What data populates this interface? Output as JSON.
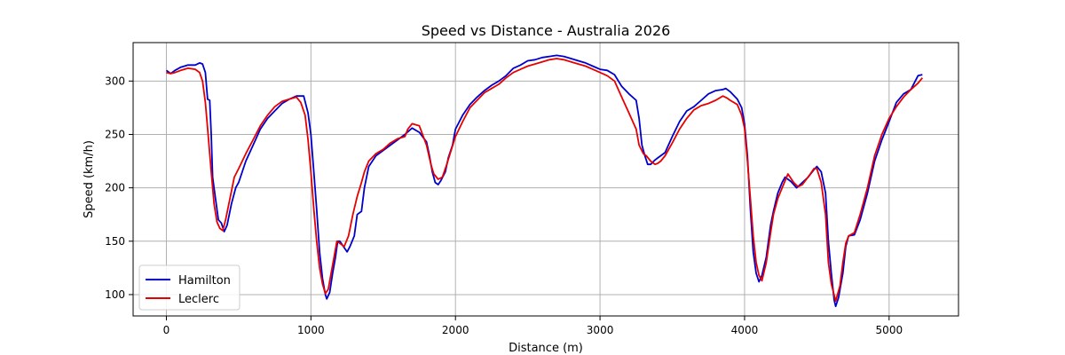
{
  "chart_data": {
    "type": "line",
    "title": "Speed vs Distance - Australia 2026",
    "xlabel": "Distance (m)",
    "ylabel": "Speed (km/h)",
    "xlim": [
      -230,
      5480
    ],
    "ylim": [
      80,
      336
    ],
    "x_ticks": [
      0,
      1000,
      2000,
      3000,
      4000,
      5000
    ],
    "x_tick_labels": [
      "0",
      "1000",
      "2000",
      "3000",
      "4000",
      "5000"
    ],
    "y_ticks": [
      100,
      150,
      200,
      250,
      300
    ],
    "y_tick_labels": [
      "100",
      "150",
      "200",
      "250",
      "300"
    ],
    "grid": true,
    "legend_position": "lower-left",
    "series": [
      {
        "name": "Hamilton",
        "color": "#0000cc",
        "points": [
          [
            0,
            310
          ],
          [
            30,
            307
          ],
          [
            60,
            310
          ],
          [
            100,
            313
          ],
          [
            150,
            315
          ],
          [
            200,
            315
          ],
          [
            230,
            317
          ],
          [
            250,
            316
          ],
          [
            270,
            308
          ],
          [
            285,
            283
          ],
          [
            300,
            282
          ],
          [
            310,
            250
          ],
          [
            320,
            210
          ],
          [
            340,
            190
          ],
          [
            360,
            170
          ],
          [
            380,
            167
          ],
          [
            400,
            159
          ],
          [
            420,
            165
          ],
          [
            450,
            185
          ],
          [
            480,
            200
          ],
          [
            500,
            205
          ],
          [
            550,
            225
          ],
          [
            600,
            240
          ],
          [
            650,
            255
          ],
          [
            700,
            265
          ],
          [
            750,
            272
          ],
          [
            800,
            279
          ],
          [
            850,
            283
          ],
          [
            900,
            286
          ],
          [
            950,
            286
          ],
          [
            980,
            270
          ],
          [
            1000,
            250
          ],
          [
            1020,
            215
          ],
          [
            1040,
            180
          ],
          [
            1060,
            140
          ],
          [
            1080,
            115
          ],
          [
            1100,
            100
          ],
          [
            1110,
            96
          ],
          [
            1130,
            102
          ],
          [
            1150,
            120
          ],
          [
            1170,
            135
          ],
          [
            1185,
            150
          ],
          [
            1200,
            150
          ],
          [
            1230,
            144
          ],
          [
            1250,
            140
          ],
          [
            1270,
            145
          ],
          [
            1300,
            155
          ],
          [
            1320,
            175
          ],
          [
            1350,
            178
          ],
          [
            1370,
            200
          ],
          [
            1400,
            220
          ],
          [
            1450,
            230
          ],
          [
            1500,
            235
          ],
          [
            1550,
            240
          ],
          [
            1600,
            245
          ],
          [
            1650,
            250
          ],
          [
            1700,
            256
          ],
          [
            1750,
            252
          ],
          [
            1800,
            243
          ],
          [
            1820,
            230
          ],
          [
            1840,
            215
          ],
          [
            1860,
            205
          ],
          [
            1880,
            203
          ],
          [
            1900,
            207
          ],
          [
            1930,
            215
          ],
          [
            1950,
            228
          ],
          [
            1980,
            240
          ],
          [
            2000,
            255
          ],
          [
            2050,
            268
          ],
          [
            2100,
            278
          ],
          [
            2150,
            285
          ],
          [
            2200,
            291
          ],
          [
            2250,
            296
          ],
          [
            2300,
            300
          ],
          [
            2350,
            305
          ],
          [
            2400,
            312
          ],
          [
            2450,
            315
          ],
          [
            2500,
            319
          ],
          [
            2550,
            320
          ],
          [
            2600,
            322
          ],
          [
            2650,
            323
          ],
          [
            2700,
            324
          ],
          [
            2750,
            323
          ],
          [
            2800,
            321
          ],
          [
            2850,
            319
          ],
          [
            2900,
            317
          ],
          [
            2950,
            314
          ],
          [
            3000,
            311
          ],
          [
            3050,
            310
          ],
          [
            3100,
            306
          ],
          [
            3150,
            295
          ],
          [
            3200,
            288
          ],
          [
            3250,
            282
          ],
          [
            3270,
            265
          ],
          [
            3290,
            240
          ],
          [
            3310,
            230
          ],
          [
            3330,
            222
          ],
          [
            3350,
            222
          ],
          [
            3380,
            226
          ],
          [
            3400,
            228
          ],
          [
            3450,
            233
          ],
          [
            3500,
            248
          ],
          [
            3550,
            262
          ],
          [
            3600,
            272
          ],
          [
            3650,
            276
          ],
          [
            3700,
            282
          ],
          [
            3750,
            288
          ],
          [
            3800,
            291
          ],
          [
            3850,
            292
          ],
          [
            3870,
            293
          ],
          [
            3900,
            290
          ],
          [
            3950,
            283
          ],
          [
            3980,
            275
          ],
          [
            4000,
            260
          ],
          [
            4020,
            230
          ],
          [
            4040,
            180
          ],
          [
            4060,
            140
          ],
          [
            4080,
            120
          ],
          [
            4100,
            112
          ],
          [
            4120,
            118
          ],
          [
            4150,
            135
          ],
          [
            4180,
            165
          ],
          [
            4200,
            178
          ],
          [
            4230,
            195
          ],
          [
            4260,
            205
          ],
          [
            4280,
            210
          ],
          [
            4320,
            206
          ],
          [
            4360,
            200
          ],
          [
            4400,
            205
          ],
          [
            4440,
            210
          ],
          [
            4480,
            217
          ],
          [
            4500,
            220
          ],
          [
            4530,
            215
          ],
          [
            4560,
            195
          ],
          [
            4580,
            150
          ],
          [
            4600,
            120
          ],
          [
            4620,
            95
          ],
          [
            4630,
            89
          ],
          [
            4650,
            97
          ],
          [
            4680,
            120
          ],
          [
            4700,
            145
          ],
          [
            4720,
            155
          ],
          [
            4760,
            156
          ],
          [
            4800,
            170
          ],
          [
            4850,
            195
          ],
          [
            4900,
            225
          ],
          [
            4950,
            245
          ],
          [
            5000,
            262
          ],
          [
            5050,
            280
          ],
          [
            5100,
            288
          ],
          [
            5150,
            292
          ],
          [
            5200,
            305
          ],
          [
            5230,
            306
          ]
        ]
      },
      {
        "name": "Leclerc",
        "color": "#e60000",
        "points": [
          [
            0,
            308
          ],
          [
            30,
            307
          ],
          [
            60,
            308
          ],
          [
            100,
            310
          ],
          [
            150,
            312
          ],
          [
            200,
            311
          ],
          [
            230,
            308
          ],
          [
            250,
            300
          ],
          [
            270,
            280
          ],
          [
            290,
            248
          ],
          [
            310,
            215
          ],
          [
            330,
            185
          ],
          [
            350,
            168
          ],
          [
            370,
            162
          ],
          [
            390,
            160
          ],
          [
            410,
            170
          ],
          [
            440,
            190
          ],
          [
            470,
            210
          ],
          [
            500,
            218
          ],
          [
            550,
            232
          ],
          [
            600,
            245
          ],
          [
            650,
            258
          ],
          [
            700,
            268
          ],
          [
            750,
            276
          ],
          [
            800,
            281
          ],
          [
            850,
            283
          ],
          [
            900,
            285
          ],
          [
            930,
            280
          ],
          [
            960,
            268
          ],
          [
            980,
            245
          ],
          [
            1000,
            215
          ],
          [
            1020,
            180
          ],
          [
            1040,
            150
          ],
          [
            1060,
            125
          ],
          [
            1080,
            110
          ],
          [
            1100,
            101
          ],
          [
            1120,
            105
          ],
          [
            1140,
            120
          ],
          [
            1160,
            135
          ],
          [
            1180,
            150
          ],
          [
            1200,
            148
          ],
          [
            1230,
            145
          ],
          [
            1260,
            155
          ],
          [
            1290,
            175
          ],
          [
            1320,
            192
          ],
          [
            1350,
            205
          ],
          [
            1370,
            215
          ],
          [
            1400,
            225
          ],
          [
            1450,
            232
          ],
          [
            1500,
            236
          ],
          [
            1550,
            242
          ],
          [
            1600,
            246
          ],
          [
            1650,
            248
          ],
          [
            1670,
            255
          ],
          [
            1700,
            260
          ],
          [
            1750,
            258
          ],
          [
            1800,
            240
          ],
          [
            1830,
            222
          ],
          [
            1850,
            213
          ],
          [
            1880,
            208
          ],
          [
            1910,
            210
          ],
          [
            1940,
            222
          ],
          [
            1970,
            235
          ],
          [
            2000,
            248
          ],
          [
            2050,
            262
          ],
          [
            2100,
            275
          ],
          [
            2150,
            282
          ],
          [
            2200,
            289
          ],
          [
            2250,
            293
          ],
          [
            2300,
            297
          ],
          [
            2350,
            303
          ],
          [
            2400,
            308
          ],
          [
            2450,
            311
          ],
          [
            2500,
            314
          ],
          [
            2550,
            316
          ],
          [
            2600,
            318
          ],
          [
            2650,
            320
          ],
          [
            2700,
            321
          ],
          [
            2750,
            320
          ],
          [
            2800,
            318
          ],
          [
            2850,
            316
          ],
          [
            2900,
            314
          ],
          [
            2950,
            311
          ],
          [
            3000,
            308
          ],
          [
            3050,
            305
          ],
          [
            3100,
            300
          ],
          [
            3150,
            285
          ],
          [
            3200,
            270
          ],
          [
            3250,
            255
          ],
          [
            3270,
            240
          ],
          [
            3300,
            232
          ],
          [
            3320,
            230
          ],
          [
            3350,
            225
          ],
          [
            3380,
            222
          ],
          [
            3400,
            223
          ],
          [
            3420,
            225
          ],
          [
            3450,
            230
          ],
          [
            3500,
            242
          ],
          [
            3550,
            255
          ],
          [
            3600,
            265
          ],
          [
            3650,
            273
          ],
          [
            3700,
            277
          ],
          [
            3750,
            279
          ],
          [
            3800,
            282
          ],
          [
            3850,
            286
          ],
          [
            3880,
            284
          ],
          [
            3900,
            282
          ],
          [
            3950,
            278
          ],
          [
            3980,
            268
          ],
          [
            4000,
            256
          ],
          [
            4020,
            225
          ],
          [
            4040,
            190
          ],
          [
            4060,
            155
          ],
          [
            4080,
            130
          ],
          [
            4100,
            118
          ],
          [
            4120,
            113
          ],
          [
            4150,
            130
          ],
          [
            4180,
            158
          ],
          [
            4200,
            175
          ],
          [
            4230,
            190
          ],
          [
            4260,
            200
          ],
          [
            4300,
            213
          ],
          [
            4340,
            205
          ],
          [
            4370,
            201
          ],
          [
            4400,
            203
          ],
          [
            4450,
            212
          ],
          [
            4480,
            218
          ],
          [
            4500,
            218
          ],
          [
            4530,
            205
          ],
          [
            4560,
            175
          ],
          [
            4580,
            130
          ],
          [
            4600,
            110
          ],
          [
            4630,
            94
          ],
          [
            4660,
            108
          ],
          [
            4680,
            130
          ],
          [
            4700,
            148
          ],
          [
            4720,
            155
          ],
          [
            4760,
            158
          ],
          [
            4800,
            175
          ],
          [
            4850,
            200
          ],
          [
            4900,
            230
          ],
          [
            4950,
            250
          ],
          [
            5000,
            265
          ],
          [
            5050,
            276
          ],
          [
            5100,
            285
          ],
          [
            5150,
            292
          ],
          [
            5200,
            298
          ],
          [
            5230,
            303
          ]
        ]
      }
    ]
  }
}
